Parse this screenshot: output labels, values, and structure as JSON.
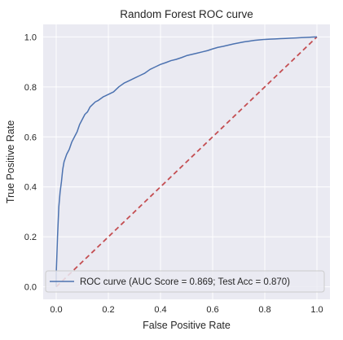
{
  "chart_data": {
    "type": "line",
    "title": "Random Forest ROC curve",
    "xlabel": "False Positive Rate",
    "ylabel": "True Positive Rate",
    "xlim": [
      -0.05,
      1.05
    ],
    "ylim": [
      -0.05,
      1.05
    ],
    "xticks": [
      "0.0",
      "0.2",
      "0.4",
      "0.6",
      "0.8",
      "1.0"
    ],
    "yticks": [
      "0.0",
      "0.2",
      "0.4",
      "0.6",
      "0.8",
      "1.0"
    ],
    "grid": true,
    "legend_position": "lower-right",
    "series": [
      {
        "name": "ROC curve (AUC Score = 0.869; Test Acc = 0.870)",
        "color": "#4c72b0",
        "style": "solid",
        "x": [
          0.0,
          0.0,
          0.005,
          0.01,
          0.015,
          0.02,
          0.025,
          0.03,
          0.04,
          0.05,
          0.06,
          0.07,
          0.08,
          0.09,
          0.1,
          0.11,
          0.12,
          0.13,
          0.14,
          0.15,
          0.16,
          0.18,
          0.2,
          0.22,
          0.24,
          0.26,
          0.28,
          0.3,
          0.32,
          0.34,
          0.36,
          0.38,
          0.4,
          0.42,
          0.44,
          0.46,
          0.48,
          0.5,
          0.52,
          0.54,
          0.56,
          0.58,
          0.6,
          0.62,
          0.64,
          0.66,
          0.68,
          0.7,
          0.72,
          0.74,
          0.76,
          0.78,
          0.8,
          0.82,
          0.84,
          0.86,
          0.88,
          0.9,
          0.92,
          0.94,
          0.96,
          0.98,
          1.0
        ],
        "y": [
          0.0,
          0.05,
          0.2,
          0.32,
          0.38,
          0.42,
          0.47,
          0.5,
          0.53,
          0.55,
          0.58,
          0.6,
          0.62,
          0.65,
          0.67,
          0.69,
          0.7,
          0.72,
          0.73,
          0.74,
          0.745,
          0.76,
          0.77,
          0.78,
          0.8,
          0.815,
          0.825,
          0.835,
          0.845,
          0.855,
          0.87,
          0.88,
          0.89,
          0.897,
          0.905,
          0.91,
          0.917,
          0.925,
          0.93,
          0.935,
          0.94,
          0.945,
          0.952,
          0.958,
          0.962,
          0.967,
          0.972,
          0.976,
          0.98,
          0.983,
          0.986,
          0.988,
          0.99,
          0.991,
          0.992,
          0.993,
          0.994,
          0.995,
          0.996,
          0.997,
          0.998,
          0.999,
          1.0
        ]
      },
      {
        "name": "",
        "color": "#c44e52",
        "style": "dashed",
        "x": [
          0.0,
          1.0
        ],
        "y": [
          0.0,
          1.0
        ]
      }
    ]
  }
}
